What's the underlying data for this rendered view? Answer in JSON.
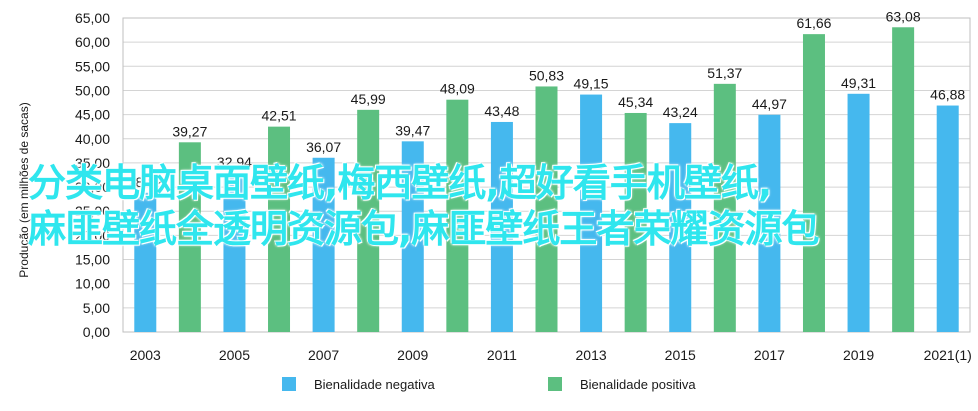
{
  "chart_data": {
    "type": "bar",
    "ylabel": "Produção (em milhões de sacas)",
    "ylim": [
      0,
      65
    ],
    "ytick_step": 5,
    "ytick_labels": [
      "0,00",
      "5,00",
      "10,00",
      "15,00",
      "20,00",
      "25,00",
      "30,00",
      "35,00",
      "40,00",
      "45,00",
      "50,00",
      "55,00",
      "60,00",
      "65,00"
    ],
    "xtick_labels": [
      "2003",
      "2005",
      "2007",
      "2009",
      "2011",
      "2013",
      "2015",
      "2017",
      "2019",
      "2021(1)"
    ],
    "grid": true,
    "legend_position": "bottom",
    "series": [
      {
        "name": "Bienalidade negativa",
        "color": "#45b8ee",
        "x": [
          2003,
          2005,
          2007,
          2009,
          2011,
          2013,
          2015,
          2017,
          2019,
          2021
        ],
        "values": [
          28.82,
          32.94,
          36.07,
          39.47,
          43.48,
          49.15,
          43.24,
          44.97,
          49.31,
          46.88
        ],
        "labels": [
          "28,82",
          "32,94",
          "36,07",
          "39,47",
          "43,48",
          "49,15",
          "43,24",
          "44,97",
          "49,31",
          "46,88"
        ]
      },
      {
        "name": "Bienalidade positiva",
        "color": "#5cbf80",
        "x": [
          2004,
          2006,
          2008,
          2010,
          2012,
          2014,
          2016,
          2018,
          2020
        ],
        "values": [
          39.27,
          42.51,
          45.99,
          48.09,
          50.83,
          45.34,
          51.37,
          61.66,
          63.08
        ],
        "labels": [
          "39,27",
          "42,51",
          "45,99",
          "48,09",
          "50,83",
          "45,34",
          "51,37",
          "61,66",
          "63,08"
        ]
      }
    ]
  },
  "watermark": {
    "line1": "分类电脑桌面壁纸,梅西壁纸,超好看手机壁纸,",
    "line2": "麻匪壁纸全透明资源包,麻匪壁纸王者荣耀资源包"
  }
}
